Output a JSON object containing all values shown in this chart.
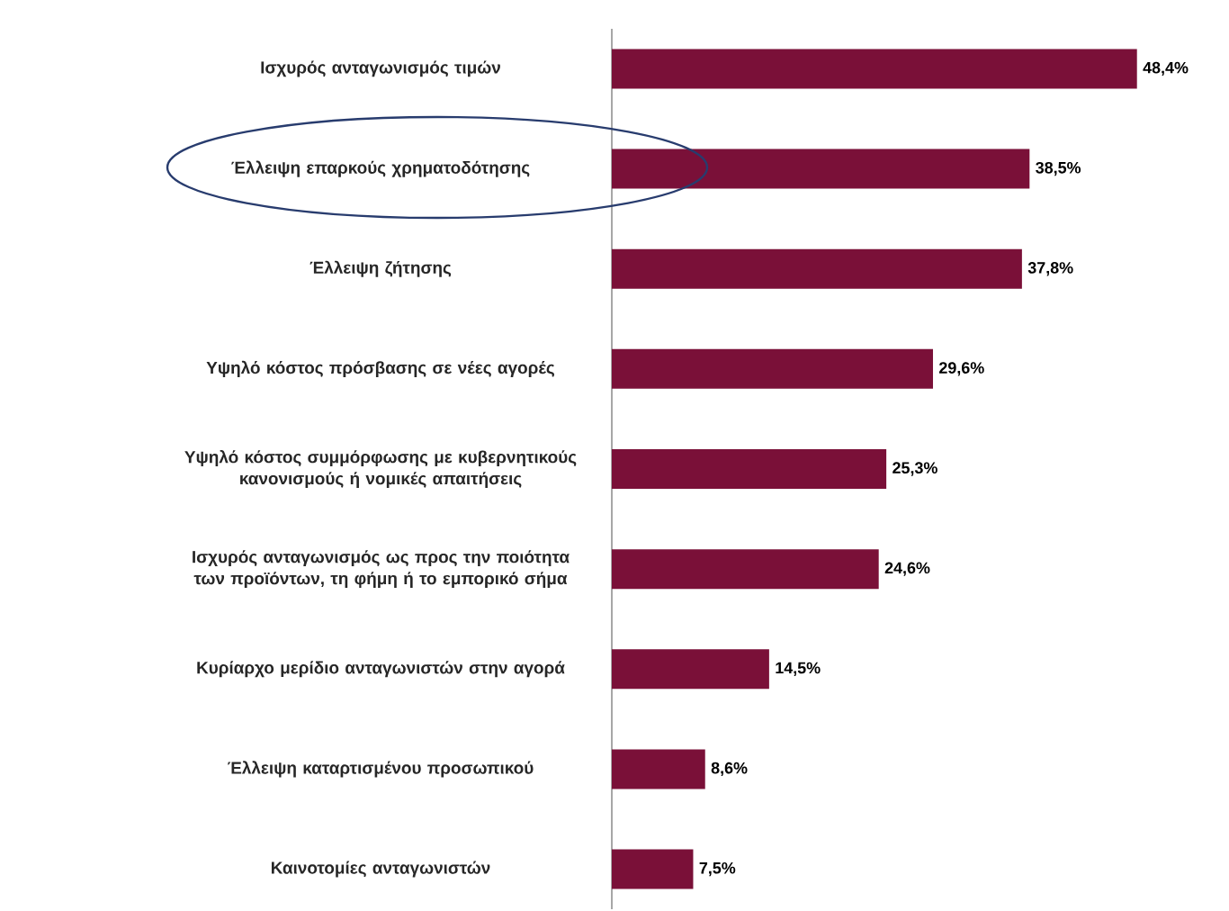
{
  "chart_data": {
    "type": "bar",
    "orientation": "horizontal",
    "color": "#7a1038",
    "data_labels": true,
    "categories": [
      "Ισχυρός ανταγωνισμός τιμών",
      "Έλλειψη επαρκούς χρηματοδότησης",
      "Έλλειψη ζήτησης",
      "Υψηλό κόστος πρόσβασης σε νέες αγορές",
      "Υψηλό κόστος συμμόρφωσης με κυβερνητικούς κανονισμούς ή νομικές απαιτήσεις",
      "Ισχυρός ανταγωνισμός ως προς την ποιότητα των προϊόντων, τη φήμη ή το εμπορικό σήμα",
      "Κυρίαρχο μερίδιο ανταγωνιστών στην αγορά",
      "Έλλειψη καταρτισμένου προσωπικού",
      "Καινοτομίες ανταγωνιστών"
    ],
    "values": [
      48.4,
      38.5,
      37.8,
      29.6,
      25.3,
      24.6,
      14.5,
      8.6,
      7.5
    ],
    "value_labels": [
      "48,4%",
      "38,5%",
      "37,8%",
      "29,6%",
      "25,3%",
      "24,6%",
      "14,5%",
      "8,6%",
      "7,5%"
    ]
  }
}
